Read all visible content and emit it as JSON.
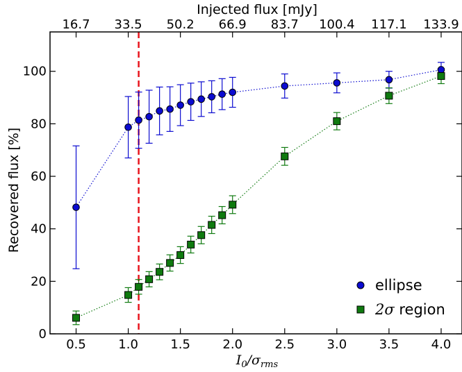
{
  "chart_data": {
    "type": "scatter",
    "title": "",
    "xlabel": "I_0/σ_rms",
    "xlabel_parts": {
      "main": "I",
      "sub1": "0",
      "slash": "/σ",
      "sub2": "rms"
    },
    "ylabel": "Recovered flux [%]",
    "top_xlabel": "Injected flux [mJy]",
    "xlim": [
      0.25,
      4.2
    ],
    "ylim": [
      0,
      115
    ],
    "x_ticks": [
      0.5,
      1.0,
      1.5,
      2.0,
      2.5,
      3.0,
      3.5,
      4.0
    ],
    "x_tick_labels": [
      "0.5",
      "1.0",
      "1.5",
      "2.0",
      "2.5",
      "3.0",
      "3.5",
      "4.0"
    ],
    "y_ticks": [
      0,
      20,
      40,
      60,
      80,
      100
    ],
    "y_tick_labels": [
      "0",
      "20",
      "40",
      "60",
      "80",
      "100"
    ],
    "top_ticks": [
      0.5,
      1.0,
      1.5,
      2.0,
      2.5,
      3.0,
      3.5,
      4.0
    ],
    "top_tick_labels": [
      "16.7",
      "33.5",
      "50.2",
      "66.9",
      "83.7",
      "100.4",
      "117.1",
      "133.9"
    ],
    "vline": {
      "x": 1.1,
      "color": "#e8141c",
      "style": "dashed"
    },
    "grid": false,
    "legend_position": "lower-right",
    "series": [
      {
        "name": "ellipse",
        "legend_label": "ellipse",
        "color": "#0b0bd0",
        "marker": "circle",
        "x": [
          0.5,
          1.0,
          1.1,
          1.2,
          1.3,
          1.4,
          1.5,
          1.6,
          1.7,
          1.8,
          1.9,
          2.0,
          2.5,
          3.0,
          3.5,
          4.0
        ],
        "y": [
          48.2,
          78.7,
          81.4,
          82.7,
          84.9,
          85.6,
          87.1,
          88.4,
          89.4,
          90.3,
          91.3,
          92.0,
          94.4,
          95.6,
          96.8,
          100.6
        ],
        "err": [
          23.4,
          11.7,
          10.7,
          10.1,
          9.1,
          8.5,
          7.8,
          7.1,
          6.6,
          6.1,
          5.9,
          5.7,
          4.6,
          3.8,
          3.2,
          2.8
        ]
      },
      {
        "name": "2σ region",
        "legend_label_sigma": "2σ",
        "legend_label_rest": " region",
        "color": "#0f7a0f",
        "marker": "square",
        "x": [
          0.5,
          1.0,
          1.1,
          1.2,
          1.3,
          1.4,
          1.5,
          1.6,
          1.7,
          1.8,
          1.9,
          2.0,
          2.5,
          3.0,
          3.5,
          4.0
        ],
        "y": [
          6.1,
          14.8,
          17.9,
          20.8,
          23.6,
          27.0,
          30.0,
          34.0,
          37.6,
          41.5,
          45.2,
          49.2,
          67.6,
          81.0,
          90.7,
          98.2
        ],
        "err": [
          2.6,
          2.8,
          2.8,
          2.9,
          3.0,
          3.1,
          3.2,
          3.2,
          3.3,
          3.3,
          3.3,
          3.4,
          3.4,
          3.3,
          3.0,
          2.9
        ]
      }
    ]
  }
}
